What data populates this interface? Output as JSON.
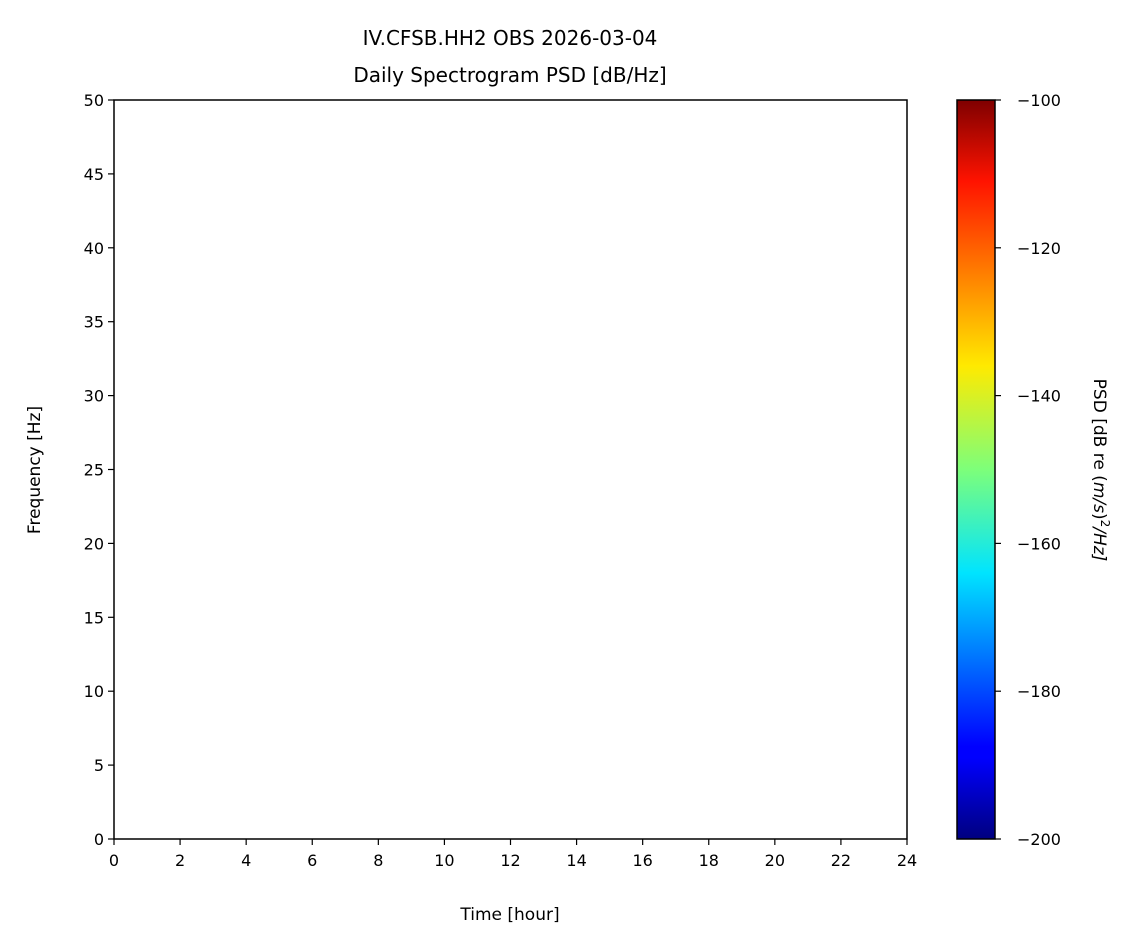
{
  "chart_data": {
    "type": "heatmap",
    "title": "IV.CFSB.HH2 OBS 2026-03-04",
    "subtitle": "Daily Spectrogram PSD [dB/Hz]",
    "xlabel": "Time [hour]",
    "ylabel": "Frequency [Hz]",
    "xlim": [
      0,
      24
    ],
    "ylim": [
      0,
      50
    ],
    "xticks": [
      0,
      2,
      4,
      6,
      8,
      10,
      12,
      14,
      16,
      18,
      20,
      22,
      24
    ],
    "yticks": [
      0,
      5,
      10,
      15,
      20,
      25,
      30,
      35,
      40,
      45,
      50
    ],
    "values": [],
    "grid": false,
    "colorbar": {
      "label": "PSD [dB re (m/s)²/Hz]",
      "label_main": "PSD [dB re (",
      "label_var": "m/s",
      "label_mid": ")",
      "label_exp": "2",
      "label_tail": "/Hz]",
      "colormap": "jet",
      "range": [
        -200,
        -100
      ],
      "ticks": [
        -200,
        -180,
        -160,
        -140,
        -120,
        -100
      ],
      "tick_labels": [
        "−200",
        "−180",
        "−160",
        "−140",
        "−120",
        "−100"
      ],
      "position": "right"
    }
  }
}
